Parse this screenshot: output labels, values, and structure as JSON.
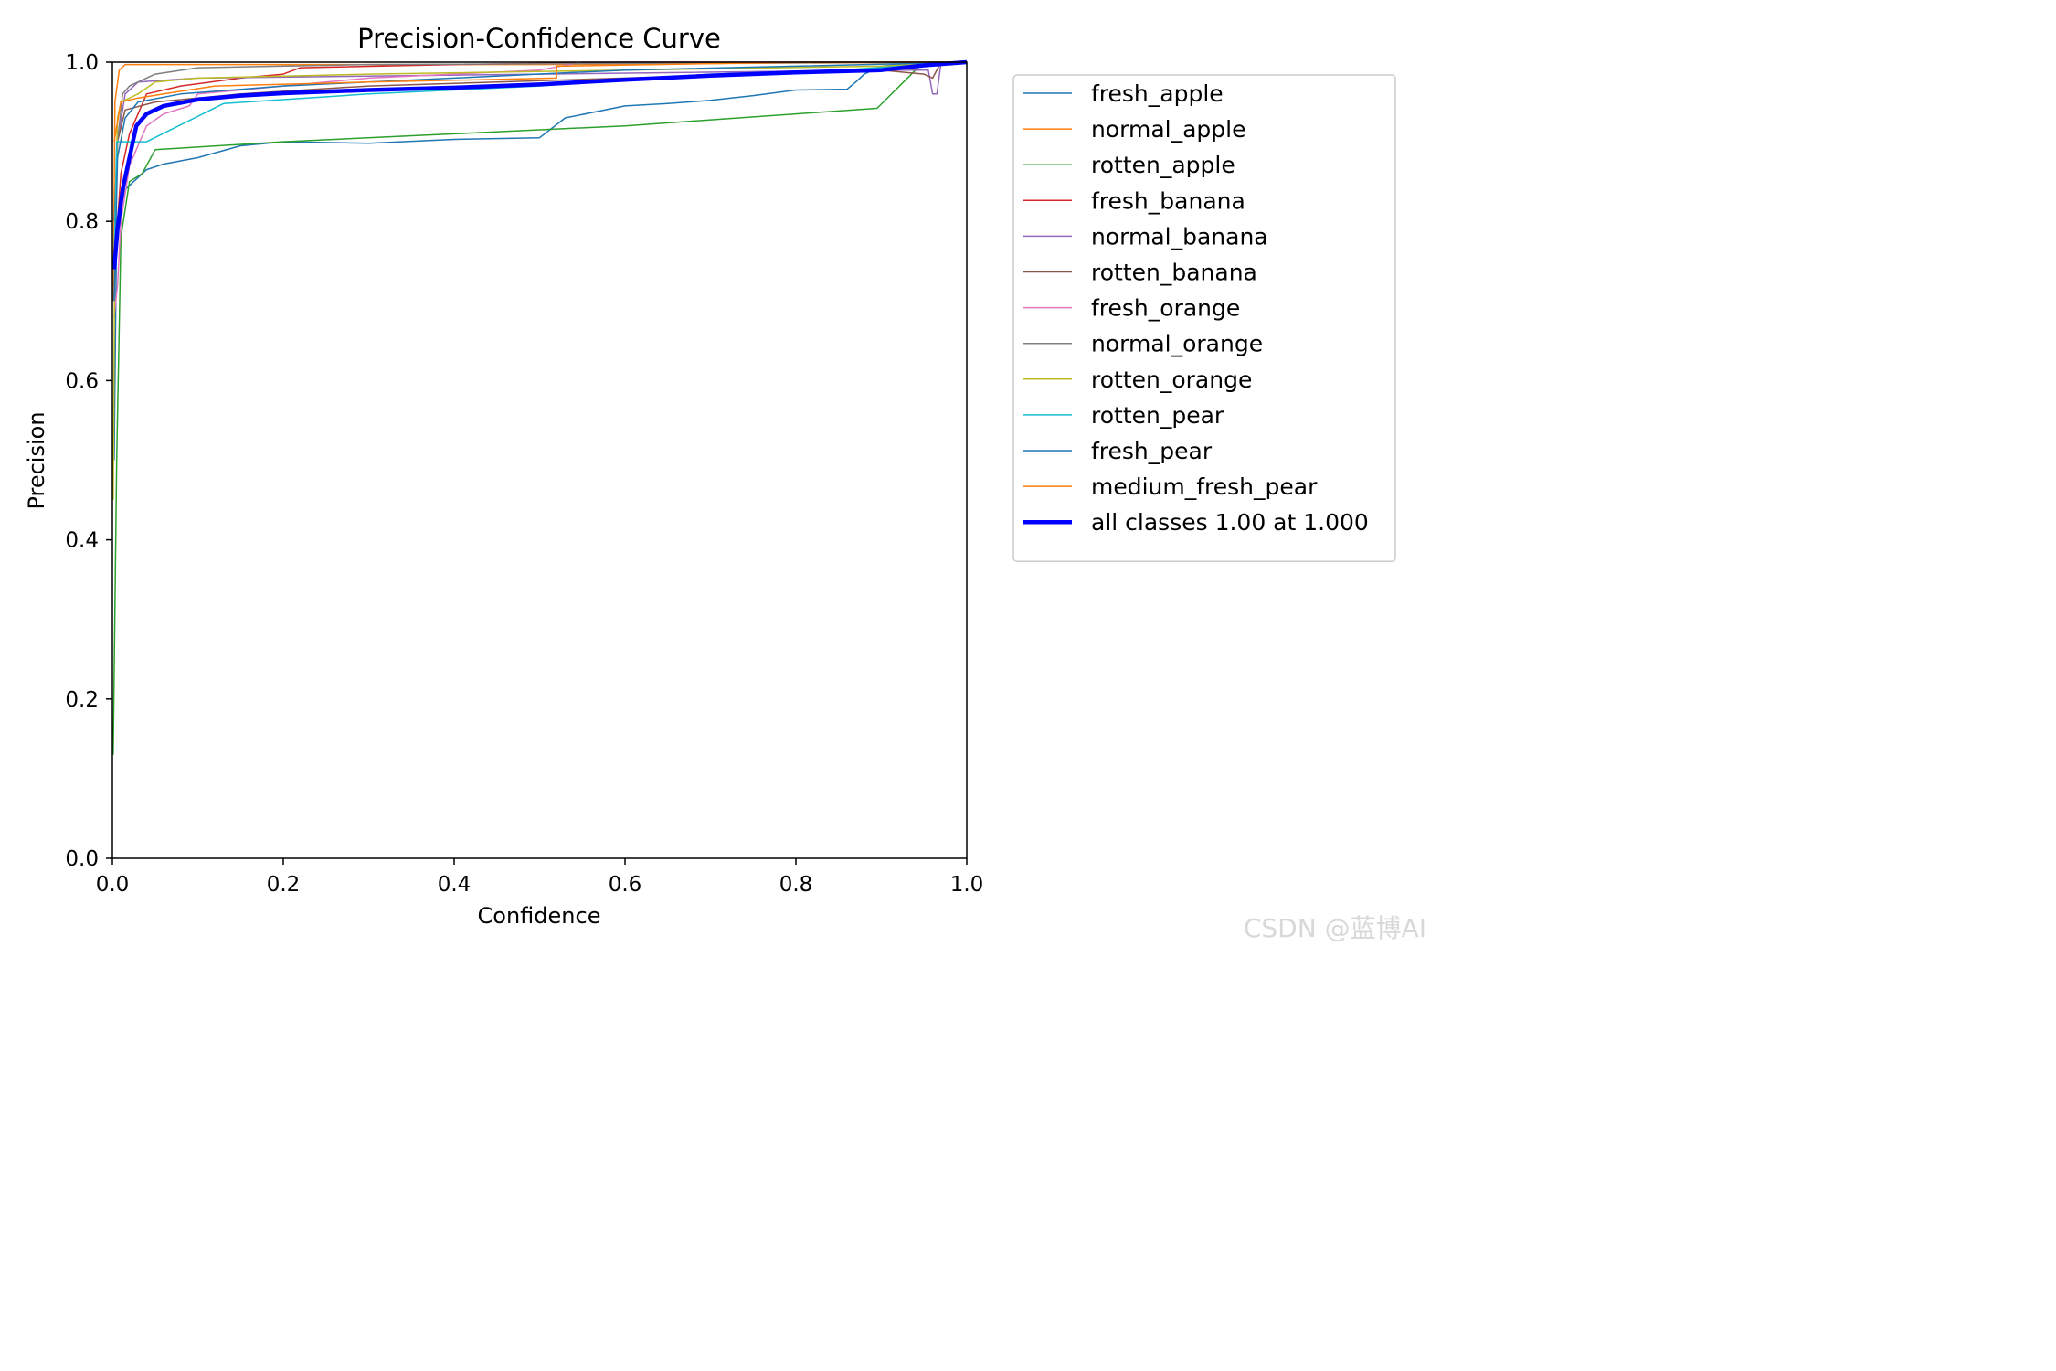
{
  "chart_data": {
    "type": "line",
    "title": "Precision-Confidence Curve",
    "xlabel": "Confidence",
    "ylabel": "Precision",
    "xlim": [
      0,
      1
    ],
    "ylim": [
      0,
      1
    ],
    "xticks": [
      "0.0",
      "0.2",
      "0.4",
      "0.6",
      "0.8",
      "1.0"
    ],
    "yticks": [
      "0.0",
      "0.2",
      "0.4",
      "0.6",
      "0.8",
      "1.0"
    ],
    "legend_position": "outside-right",
    "grid": false,
    "series": [
      {
        "name": "fresh_apple",
        "color": "#1f77b4",
        "width": 1.5,
        "points": [
          [
            0.002,
            0.5
          ],
          [
            0.005,
            0.8
          ],
          [
            0.015,
            0.84
          ],
          [
            0.025,
            0.85
          ],
          [
            0.04,
            0.865
          ],
          [
            0.06,
            0.872
          ],
          [
            0.1,
            0.88
          ],
          [
            0.15,
            0.895
          ],
          [
            0.2,
            0.9
          ],
          [
            0.3,
            0.898
          ],
          [
            0.4,
            0.903
          ],
          [
            0.5,
            0.905
          ],
          [
            0.53,
            0.93
          ],
          [
            0.6,
            0.945
          ],
          [
            0.65,
            0.948
          ],
          [
            0.7,
            0.952
          ],
          [
            0.75,
            0.958
          ],
          [
            0.8,
            0.965
          ],
          [
            0.86,
            0.966
          ],
          [
            0.87,
            0.975
          ],
          [
            0.88,
            0.985
          ],
          [
            0.9,
            0.995
          ],
          [
            0.95,
            1.0
          ],
          [
            1.0,
            1.0
          ]
        ]
      },
      {
        "name": "normal_apple",
        "color": "#ff7f0e",
        "width": 1.5,
        "points": [
          [
            0.001,
            0.7
          ],
          [
            0.003,
            0.95
          ],
          [
            0.008,
            0.99
          ],
          [
            0.015,
            0.997
          ],
          [
            0.5,
            0.997
          ],
          [
            1.0,
            1.0
          ]
        ]
      },
      {
        "name": "rotten_apple",
        "color": "#2ca02c",
        "width": 1.5,
        "points": [
          [
            0.001,
            0.13
          ],
          [
            0.005,
            0.5
          ],
          [
            0.01,
            0.78
          ],
          [
            0.02,
            0.85
          ],
          [
            0.035,
            0.86
          ],
          [
            0.05,
            0.89
          ],
          [
            0.2,
            0.9
          ],
          [
            0.4,
            0.91
          ],
          [
            0.6,
            0.92
          ],
          [
            0.8,
            0.935
          ],
          [
            0.895,
            0.942
          ],
          [
            0.94,
            0.99
          ],
          [
            0.95,
            1.0
          ],
          [
            1.0,
            1.0
          ]
        ]
      },
      {
        "name": "fresh_banana",
        "color": "#d62728",
        "width": 1.5,
        "points": [
          [
            0.002,
            0.72
          ],
          [
            0.006,
            0.8
          ],
          [
            0.01,
            0.86
          ],
          [
            0.02,
            0.91
          ],
          [
            0.04,
            0.96
          ],
          [
            0.08,
            0.97
          ],
          [
            0.15,
            0.98
          ],
          [
            0.2,
            0.985
          ],
          [
            0.22,
            0.993
          ],
          [
            0.4,
            0.997
          ],
          [
            0.6,
            1.0
          ],
          [
            1.0,
            1.0
          ]
        ]
      },
      {
        "name": "normal_banana",
        "color": "#9467bd",
        "width": 1.5,
        "points": [
          [
            0.002,
            0.7
          ],
          [
            0.006,
            0.9
          ],
          [
            0.015,
            0.96
          ],
          [
            0.03,
            0.975
          ],
          [
            0.1,
            0.98
          ],
          [
            0.5,
            0.985
          ],
          [
            0.9,
            0.99
          ],
          [
            0.955,
            0.99
          ],
          [
            0.96,
            0.96
          ],
          [
            0.965,
            0.96
          ],
          [
            0.97,
            1.0
          ],
          [
            1.0,
            1.0
          ]
        ]
      },
      {
        "name": "rotten_banana",
        "color": "#8c564b",
        "width": 1.5,
        "points": [
          [
            0.002,
            0.8
          ],
          [
            0.006,
            0.9
          ],
          [
            0.015,
            0.94
          ],
          [
            0.05,
            0.95
          ],
          [
            0.15,
            0.96
          ],
          [
            0.3,
            0.97
          ],
          [
            0.6,
            0.98
          ],
          [
            0.9,
            0.99
          ],
          [
            0.95,
            0.985
          ],
          [
            0.96,
            0.98
          ],
          [
            0.97,
            1.0
          ],
          [
            1.0,
            1.0
          ]
        ]
      },
      {
        "name": "fresh_orange",
        "color": "#e377c2",
        "width": 1.5,
        "points": [
          [
            0.002,
            0.68
          ],
          [
            0.006,
            0.72
          ],
          [
            0.01,
            0.8
          ],
          [
            0.02,
            0.87
          ],
          [
            0.04,
            0.92
          ],
          [
            0.06,
            0.935
          ],
          [
            0.09,
            0.945
          ],
          [
            0.1,
            0.96
          ],
          [
            0.2,
            0.97
          ],
          [
            0.3,
            0.98
          ],
          [
            0.5,
            0.99
          ],
          [
            0.55,
            1.0
          ],
          [
            1.0,
            1.0
          ]
        ]
      },
      {
        "name": "normal_orange",
        "color": "#7f7f7f",
        "width": 1.5,
        "points": [
          [
            0.002,
            0.7
          ],
          [
            0.006,
            0.9
          ],
          [
            0.012,
            0.96
          ],
          [
            0.02,
            0.97
          ],
          [
            0.05,
            0.985
          ],
          [
            0.1,
            0.993
          ],
          [
            0.3,
            0.997
          ],
          [
            1.0,
            1.0
          ]
        ]
      },
      {
        "name": "rotten_orange",
        "color": "#bcbd22",
        "width": 1.5,
        "points": [
          [
            0.001,
            0.45
          ],
          [
            0.003,
            0.8
          ],
          [
            0.006,
            0.93
          ],
          [
            0.01,
            0.95
          ],
          [
            0.03,
            0.96
          ],
          [
            0.05,
            0.975
          ],
          [
            0.1,
            0.98
          ],
          [
            0.3,
            0.985
          ],
          [
            0.6,
            0.99
          ],
          [
            0.9,
            0.995
          ],
          [
            1.0,
            1.0
          ]
        ]
      },
      {
        "name": "rotten_pear",
        "color": "#17becf",
        "width": 1.5,
        "points": [
          [
            0.002,
            0.75
          ],
          [
            0.005,
            0.9
          ],
          [
            0.04,
            0.9
          ],
          [
            0.13,
            0.948
          ],
          [
            0.3,
            0.96
          ],
          [
            0.5,
            0.97
          ],
          [
            0.7,
            0.985
          ],
          [
            0.85,
            0.99
          ],
          [
            1.0,
            1.0
          ]
        ]
      },
      {
        "name": "fresh_pear",
        "color": "#1f77b4",
        "width": 1.5,
        "points": [
          [
            0.002,
            0.7
          ],
          [
            0.006,
            0.88
          ],
          [
            0.015,
            0.93
          ],
          [
            0.03,
            0.95
          ],
          [
            0.08,
            0.96
          ],
          [
            0.2,
            0.97
          ],
          [
            0.4,
            0.98
          ],
          [
            0.6,
            0.99
          ],
          [
            0.8,
            0.995
          ],
          [
            1.0,
            1.0
          ]
        ]
      },
      {
        "name": "medium_fresh_pear",
        "color": "#ff7f0e",
        "width": 1.5,
        "points": [
          [
            0.002,
            0.9
          ],
          [
            0.01,
            0.95
          ],
          [
            0.03,
            0.955
          ],
          [
            0.06,
            0.96
          ],
          [
            0.12,
            0.97
          ],
          [
            0.3,
            0.975
          ],
          [
            0.52,
            0.98
          ],
          [
            0.52,
            0.995
          ],
          [
            0.8,
            1.0
          ],
          [
            1.0,
            1.0
          ]
        ]
      },
      {
        "name": "all classes 1.00 at 1.000",
        "color": "#0000ff",
        "width": 4.5,
        "points": [
          [
            0.002,
            0.74
          ],
          [
            0.006,
            0.79
          ],
          [
            0.012,
            0.84
          ],
          [
            0.02,
            0.88
          ],
          [
            0.028,
            0.92
          ],
          [
            0.04,
            0.935
          ],
          [
            0.06,
            0.945
          ],
          [
            0.1,
            0.953
          ],
          [
            0.15,
            0.958
          ],
          [
            0.2,
            0.961
          ],
          [
            0.3,
            0.965
          ],
          [
            0.4,
            0.968
          ],
          [
            0.5,
            0.972
          ],
          [
            0.6,
            0.978
          ],
          [
            0.7,
            0.983
          ],
          [
            0.8,
            0.987
          ],
          [
            0.9,
            0.99
          ],
          [
            0.95,
            0.996
          ],
          [
            1.0,
            1.0
          ]
        ]
      }
    ]
  },
  "watermark": "CSDN @蓝博AI"
}
